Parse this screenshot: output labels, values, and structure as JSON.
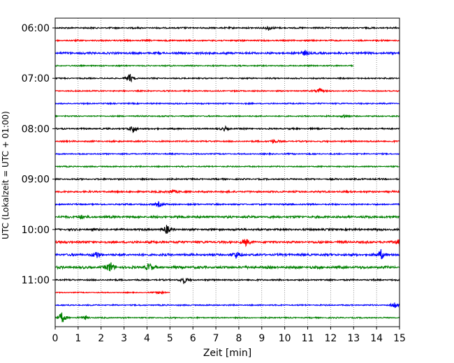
{
  "chart_data": {
    "type": "line",
    "xlabel": "Zeit  [min]",
    "ylabel": "UTC (Lokalzeit = UTC + 01:00)",
    "xlim": [
      0,
      15
    ],
    "x_ticks": [
      "0",
      "1",
      "2",
      "3",
      "4",
      "5",
      "6",
      "7",
      "8",
      "9",
      "10",
      "11",
      "12",
      "13",
      "14",
      "15"
    ],
    "y_ticks": [
      "06:00",
      "07:00",
      "08:00",
      "09:00",
      "10:00",
      "11:00"
    ],
    "grid": "vertical dotted",
    "trace_interval_minutes": 15,
    "start_time": "06:00",
    "colors": [
      "#000000",
      "#ff0000",
      "#0000ff",
      "#008000"
    ],
    "traces": [
      {
        "time": "06:00",
        "color": "#000000",
        "x_end": 15,
        "noise": 0.6,
        "events": [
          {
            "x": 9.3,
            "amp": 3.5
          }
        ]
      },
      {
        "time": "06:15",
        "color": "#ff0000",
        "x_end": 15,
        "noise": 0.6,
        "events": []
      },
      {
        "time": "06:30",
        "color": "#0000ff",
        "x_end": 15,
        "noise": 0.8,
        "events": [
          {
            "x": 10.9,
            "amp": 4
          }
        ]
      },
      {
        "time": "06:45",
        "color": "#008000",
        "x_end": 13,
        "noise": 0.5,
        "events": []
      },
      {
        "time": "07:00",
        "color": "#000000",
        "x_end": 15,
        "noise": 0.5,
        "events": [
          {
            "x": 3.25,
            "amp": 7
          }
        ]
      },
      {
        "time": "07:15",
        "color": "#ff0000",
        "x_end": 15,
        "noise": 0.5,
        "events": [
          {
            "x": 11.5,
            "amp": 4
          }
        ]
      },
      {
        "time": "07:30",
        "color": "#0000ff",
        "x_end": 15,
        "noise": 0.5,
        "events": []
      },
      {
        "time": "07:45",
        "color": "#008000",
        "x_end": 15,
        "noise": 0.5,
        "events": [
          {
            "x": 12.6,
            "amp": 3
          }
        ]
      },
      {
        "time": "08:00",
        "color": "#000000",
        "x_end": 15,
        "noise": 0.6,
        "events": [
          {
            "x": 3.4,
            "amp": 6
          },
          {
            "x": 7.4,
            "amp": 3
          }
        ]
      },
      {
        "time": "08:15",
        "color": "#ff0000",
        "x_end": 15,
        "noise": 0.6,
        "events": [
          {
            "x": 9.5,
            "amp": 3
          }
        ]
      },
      {
        "time": "08:30",
        "color": "#0000ff",
        "x_end": 15,
        "noise": 0.5,
        "events": []
      },
      {
        "time": "08:45",
        "color": "#008000",
        "x_end": 15,
        "noise": 0.5,
        "events": []
      },
      {
        "time": "09:00",
        "color": "#000000",
        "x_end": 15,
        "noise": 0.6,
        "events": []
      },
      {
        "time": "09:15",
        "color": "#ff0000",
        "x_end": 15,
        "noise": 0.7,
        "events": [
          {
            "x": 5.1,
            "amp": 3
          }
        ]
      },
      {
        "time": "09:30",
        "color": "#0000ff",
        "x_end": 15,
        "noise": 0.6,
        "events": [
          {
            "x": 4.5,
            "amp": 4
          }
        ]
      },
      {
        "time": "09:45",
        "color": "#008000",
        "x_end": 15,
        "noise": 0.9,
        "events": [
          {
            "x": 1.1,
            "amp": 3
          }
        ]
      },
      {
        "time": "10:00",
        "color": "#000000",
        "x_end": 15,
        "noise": 0.8,
        "events": [
          {
            "x": 4.85,
            "amp": 6
          }
        ]
      },
      {
        "time": "10:15",
        "color": "#ff0000",
        "x_end": 15,
        "noise": 0.9,
        "events": [
          {
            "x": 8.3,
            "amp": 5
          },
          {
            "x": 15,
            "amp": 6
          }
        ]
      },
      {
        "time": "10:30",
        "color": "#0000ff",
        "x_end": 15,
        "noise": 0.9,
        "events": [
          {
            "x": 1.8,
            "amp": 5
          },
          {
            "x": 7.9,
            "amp": 5
          },
          {
            "x": 14.2,
            "amp": 7
          }
        ]
      },
      {
        "time": "10:45",
        "color": "#008000",
        "x_end": 15,
        "noise": 1.0,
        "events": [
          {
            "x": 2.4,
            "amp": 8
          },
          {
            "x": 4.1,
            "amp": 6
          }
        ]
      },
      {
        "time": "11:00",
        "color": "#000000",
        "x_end": 15,
        "noise": 0.6,
        "events": [
          {
            "x": 5.6,
            "amp": 5
          }
        ]
      },
      {
        "time": "11:15",
        "color": "#ff0000",
        "x_end": 5,
        "noise": 0.4,
        "events": [
          {
            "x": 4.6,
            "amp": 3
          }
        ]
      },
      {
        "time": "11:30",
        "color": "#0000ff",
        "x_end": 15,
        "noise": 0.5,
        "events": [
          {
            "x": 14.8,
            "amp": 5
          }
        ]
      },
      {
        "time": "11:45",
        "color": "#008000",
        "x_end": 15,
        "noise": 0.5,
        "events": [
          {
            "x": 0.3,
            "amp": 9
          },
          {
            "x": 1.3,
            "amp": 3
          }
        ]
      }
    ]
  }
}
